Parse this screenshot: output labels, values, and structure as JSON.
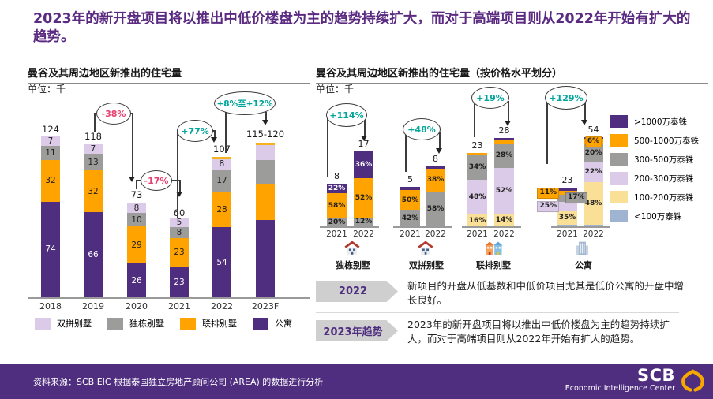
{
  "title": "2023年的新开盘项目将以推出中低价楼盘为主的趋势持续扩大，而对于高端项目则从2022年开始有扩大的趋势。",
  "colors": {
    "apartment": "#4F2D7F",
    "townhouse": "#FFA300",
    "detached": "#9C9C9B",
    "semi": "#DCCBE8",
    "p1000": "#4F2D7F",
    "p500_1000": "#FFA300",
    "p300_500": "#9C9C9B",
    "p200_300": "#DCCBE8",
    "p100_200": "#FADF96",
    "p_lt100": "#9FB4D1",
    "accent_teal": "#00A59B",
    "accent_red": "#E8416F",
    "title_purple": "#5B2B82",
    "footer_purple": "#4F2D7F",
    "gold": "#F6A800"
  },
  "chart_data": [
    {
      "type": "bar",
      "stacked": true,
      "title": "曼谷及其周边地区新推出的住宅量",
      "unit": "单位：千",
      "categories": [
        "2018",
        "2019",
        "2020",
        "2021",
        "2022",
        "2023F"
      ],
      "totals": [
        "124",
        "118",
        "73",
        "60",
        "107",
        "115-120"
      ],
      "series": [
        {
          "name": "公寓",
          "color_key": "apartment",
          "values": [
            74,
            66,
            26,
            23,
            54,
            60
          ]
        },
        {
          "name": "联排别墅",
          "color_key": "townhouse",
          "values": [
            32,
            32,
            29,
            23,
            28,
            28
          ]
        },
        {
          "name": "独栋别墅",
          "color_key": "detached",
          "values": [
            11,
            13,
            10,
            8,
            17,
            18
          ]
        },
        {
          "name": "双拼别墅",
          "color_key": "semi",
          "values": [
            7,
            7,
            8,
            5,
            8,
            12
          ]
        }
      ],
      "show_segment_labels": [
        true,
        true,
        true,
        true,
        true,
        false
      ],
      "gold_cap": [
        false,
        false,
        false,
        false,
        true,
        true
      ],
      "annotations": [
        {
          "label": "-38%",
          "color": "#E8416F",
          "from": "2019",
          "to": "2020"
        },
        {
          "label": "-17%",
          "color": "#E8416F",
          "from": "2020",
          "to": "2021"
        },
        {
          "label": "+77%",
          "color": "#00A59B",
          "from": "2021",
          "to": "2022"
        },
        {
          "label": "+8%至+12%",
          "color": "#00A59B",
          "from": "2022",
          "to": "2023F"
        }
      ],
      "legend": [
        {
          "label": "双拼别墅",
          "color_key": "semi"
        },
        {
          "label": "独栋别墅",
          "color_key": "detached"
        },
        {
          "label": "联排别墅",
          "color_key": "townhouse"
        },
        {
          "label": "公寓",
          "color_key": "apartment"
        }
      ]
    },
    {
      "type": "bar",
      "stacked": true,
      "percent": true,
      "title": "曼谷及其周边地区新推出的住宅量（按价格水平划分）",
      "unit": "单位：千",
      "groups": [
        {
          "category": "独栋别墅",
          "icon": "house-icon",
          "annotation": {
            "label": "+114%",
            "color": "#00A59B"
          },
          "bars": [
            {
              "year": "2021",
              "total": "8",
              "segments": [
                {
                  "key": "p300_500",
                  "pct": 20,
                  "label": "20%"
                },
                {
                  "key": "p500_1000",
                  "pct": 58,
                  "label": "58%"
                },
                {
                  "key": "p1000",
                  "pct": 22,
                  "label": "22%"
                }
              ]
            },
            {
              "year": "2022",
              "total": "17",
              "segments": [
                {
                  "key": "p300_500",
                  "pct": 12,
                  "label": "12%"
                },
                {
                  "key": "p500_1000",
                  "pct": 52,
                  "label": "52%"
                },
                {
                  "key": "p1000",
                  "pct": 36,
                  "label": "36%"
                }
              ]
            }
          ]
        },
        {
          "category": "双拼别墅",
          "icon": "house-icon",
          "annotation": {
            "label": "+48%",
            "color": "#00A59B"
          },
          "bars": [
            {
              "year": "2021",
              "total": "5",
              "segments": [
                {
                  "key": "p300_500",
                  "pct": 42,
                  "label": "42%"
                },
                {
                  "key": "p500_1000",
                  "pct": 50,
                  "label": "50%"
                },
                {
                  "key": "p1000",
                  "pct": 8,
                  "label": ""
                }
              ]
            },
            {
              "year": "2022",
              "total": "8",
              "segments": [
                {
                  "key": "p300_500",
                  "pct": 58,
                  "label": "58%"
                },
                {
                  "key": "p500_1000",
                  "pct": 38,
                  "label": "38%"
                },
                {
                  "key": "p1000",
                  "pct": 4,
                  "label": ""
                }
              ]
            }
          ]
        },
        {
          "category": "联排别墅",
          "icon": "rowhouses-icon",
          "annotation": {
            "label": "+19%",
            "color": "#00A59B"
          },
          "bars": [
            {
              "year": "2021",
              "total": "23",
              "segments": [
                {
                  "key": "p100_200",
                  "pct": 16,
                  "label": "16%"
                },
                {
                  "key": "p200_300",
                  "pct": 48,
                  "label": "48%"
                },
                {
                  "key": "p300_500",
                  "pct": 34,
                  "label": "34%"
                },
                {
                  "key": "p500_1000",
                  "pct": 2,
                  "label": ""
                }
              ]
            },
            {
              "year": "2022",
              "total": "28",
              "segments": [
                {
                  "key": "p100_200",
                  "pct": 14,
                  "label": "14%"
                },
                {
                  "key": "p200_300",
                  "pct": 52,
                  "label": "52%"
                },
                {
                  "key": "p300_500",
                  "pct": 28,
                  "label": "28%"
                },
                {
                  "key": "p500_1000",
                  "pct": 4,
                  "label": ""
                },
                {
                  "key": "p1000",
                  "pct": 2,
                  "label": ""
                }
              ]
            }
          ]
        },
        {
          "category": "公寓",
          "icon": "building-icon",
          "annotation": {
            "label": "+129%",
            "color": "#00A59B"
          },
          "bars": [
            {
              "year": "2021",
              "total": "23",
              "segments": [
                {
                  "key": "p_lt100",
                  "pct": 4,
                  "label": ""
                },
                {
                  "key": "p100_200",
                  "pct": 35,
                  "label": "35%"
                },
                {
                  "key": "p200_300",
                  "pct": 25,
                  "label": "25%",
                  "chip": "left"
                },
                {
                  "key": "p300_500",
                  "pct": 17,
                  "label": "17%",
                  "chip": "right"
                },
                {
                  "key": "p500_1000",
                  "pct": 11,
                  "label": "11%",
                  "chip": "left"
                },
                {
                  "key": "p1000",
                  "pct": 8,
                  "label": ""
                }
              ]
            },
            {
              "year": "2022",
              "total": "54",
              "segments": [
                {
                  "key": "p_lt100",
                  "pct": 2,
                  "label": ""
                },
                {
                  "key": "p100_200",
                  "pct": 48,
                  "label": "48%"
                },
                {
                  "key": "p200_300",
                  "pct": 22,
                  "label": "22%"
                },
                {
                  "key": "p300_500",
                  "pct": 20,
                  "label": "20%"
                },
                {
                  "key": "p500_1000",
                  "pct": 6,
                  "label": "6%",
                  "chip": "center"
                },
                {
                  "key": "p1000",
                  "pct": 2,
                  "label": ""
                }
              ]
            }
          ]
        }
      ],
      "legend": [
        {
          "label": ">1000万泰铢",
          "color_key": "p1000"
        },
        {
          "label": "500-1000万泰铢",
          "color_key": "p500_1000"
        },
        {
          "label": "300-500万泰铢",
          "color_key": "p300_500"
        },
        {
          "label": "200-300万泰铢",
          "color_key": "p200_300"
        },
        {
          "label": "100-200万泰铢",
          "color_key": "p100_200"
        },
        {
          "label": "<100万泰铢",
          "color_key": "p_lt100"
        }
      ]
    }
  ],
  "notes": [
    {
      "badge": "2022",
      "text": "新项目的开盘从低基数和中低价项目尤其是低价公寓的开盘中增长良好。"
    },
    {
      "badge": "2023年趋势",
      "text": "2023年的新开盘项目将以推出中低价楼盘为主的趋势持续扩大，而对于高端项目则从2022年开始有扩大的趋势。"
    }
  ],
  "footer": {
    "source": "资料来源：SCB EIC 根据泰国独立房地产顾问公司 (AREA) 的数据进行分析",
    "brand": "SCB",
    "brand_sub": "Economic Intelligence Center"
  }
}
